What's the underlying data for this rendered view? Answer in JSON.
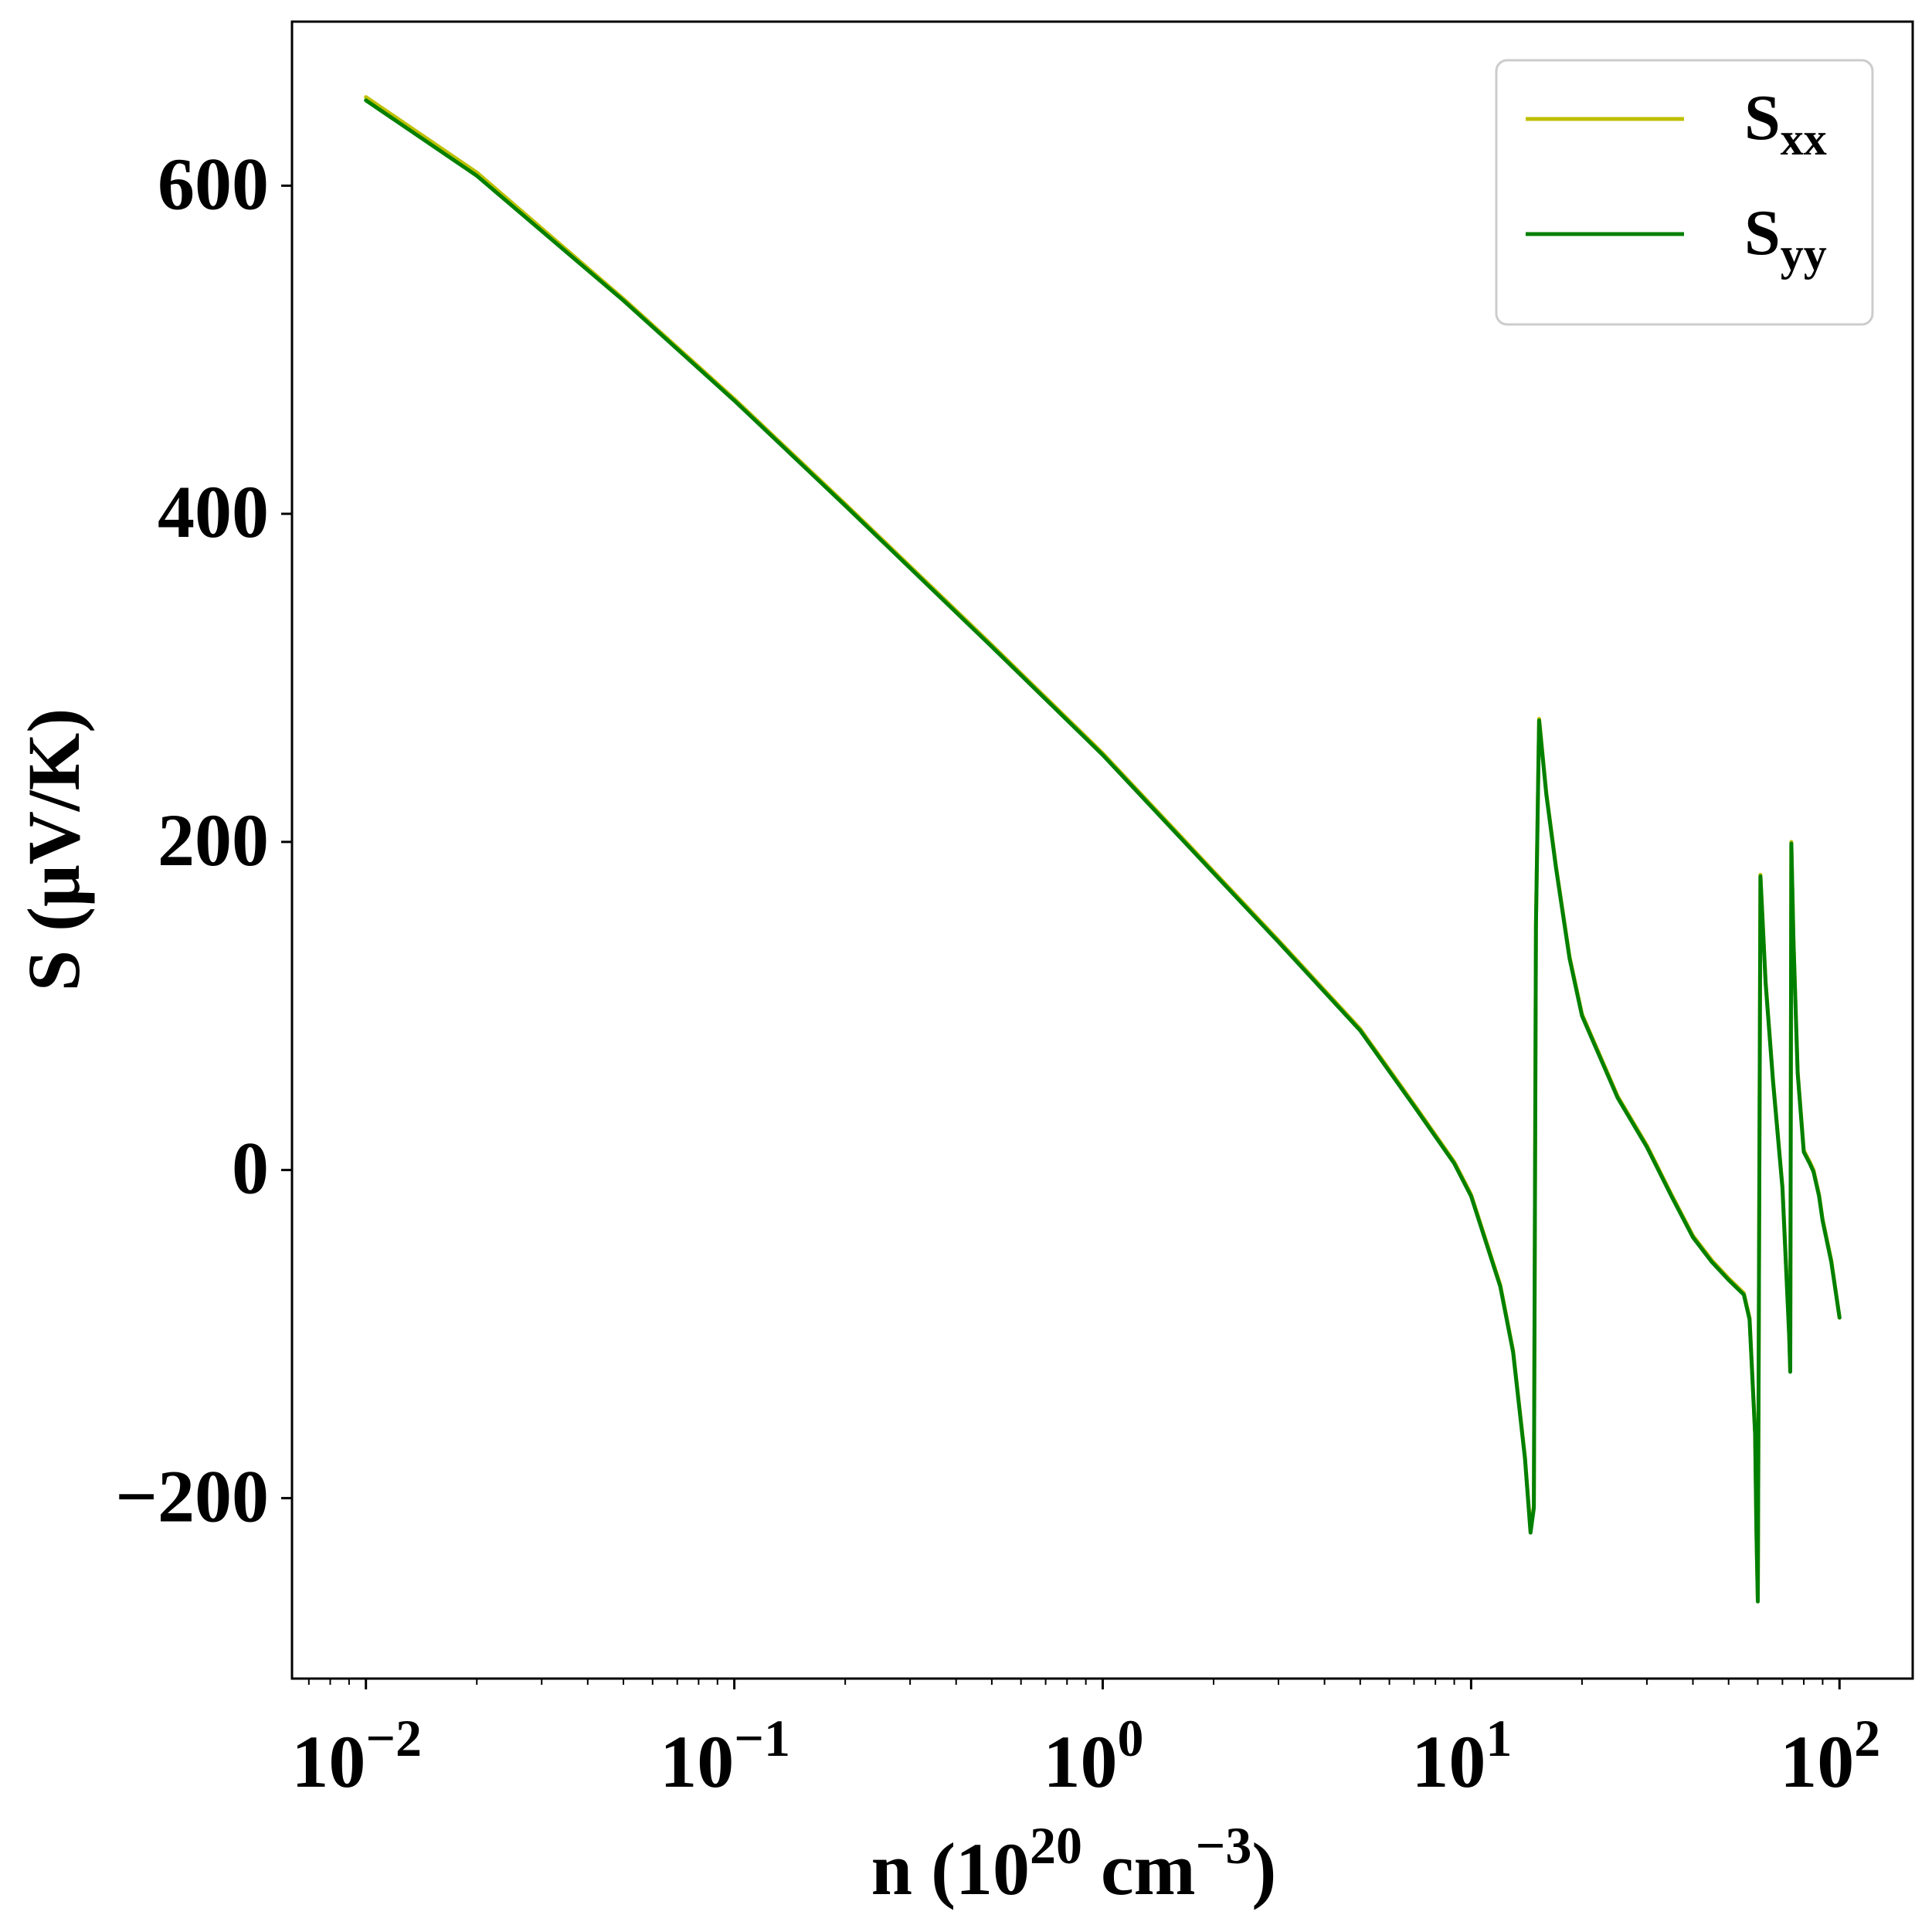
{
  "chart_data": {
    "type": "line",
    "xlabel": {
      "prefix": "n (10",
      "sup1": "20",
      "mid": " cm",
      "sup2": "−3",
      "suffix": ")"
    },
    "ylabel": "S (μV/K)",
    "xscale": "log",
    "xlim": [
      0.0063,
      158
    ],
    "ylim": [
      -310,
      700
    ],
    "yticks": [
      -200,
      0,
      200,
      400,
      600
    ],
    "ytick_labels": [
      "−200",
      "0",
      "200",
      "400",
      "600"
    ],
    "xticks": [
      0.01,
      0.1,
      1,
      10,
      100
    ],
    "xtick_labels": [
      {
        "base": "10",
        "exp": "−2"
      },
      {
        "base": "10",
        "exp": "−1"
      },
      {
        "base": "10",
        "exp": "0"
      },
      {
        "base": "10",
        "exp": "1"
      },
      {
        "base": "10",
        "exp": "2"
      }
    ],
    "legend_position": "top-right",
    "grid": false,
    "series": [
      {
        "name": "S",
        "subscript": "xx",
        "color": "#bfbf00",
        "x": [
          0.01,
          0.02,
          0.05,
          0.1,
          0.2,
          0.5,
          1,
          2,
          3,
          5,
          7,
          9,
          10,
          12,
          13,
          14,
          14.5,
          14.8,
          15,
          15.3,
          16,
          17,
          18.5,
          20,
          25,
          30,
          35,
          40,
          45,
          50,
          55,
          57,
          59,
          59.5,
          60,
          61,
          63,
          66,
          70,
          73,
          73.5,
          74,
          75,
          77,
          80,
          83,
          85,
          88,
          90,
          95,
          100
        ],
        "y": [
          654,
          608,
          531,
          470,
          406,
          320,
          254,
          182,
          140,
          86,
          40,
          5,
          -15,
          -70,
          -110,
          -175,
          -220,
          -205,
          150,
          275,
          230,
          185,
          130,
          95,
          45,
          15,
          -15,
          -40,
          -55,
          -66,
          -75,
          -90,
          -160,
          -220,
          -262,
          180,
          115,
          55,
          -10,
          -100,
          -122,
          200,
          140,
          60,
          12,
          5,
          0,
          -15,
          -30,
          -55,
          -90
        ]
      },
      {
        "name": "S",
        "subscript": "yy",
        "color": "#008000",
        "x": [
          0.01,
          0.02,
          0.05,
          0.1,
          0.2,
          0.5,
          1,
          2,
          3,
          5,
          7,
          9,
          10,
          12,
          13,
          14,
          14.5,
          14.8,
          15,
          15.3,
          16,
          17,
          18.5,
          20,
          25,
          30,
          35,
          40,
          45,
          50,
          55,
          57,
          59,
          59.5,
          60,
          61,
          63,
          66,
          70,
          73,
          73.5,
          74,
          75,
          77,
          80,
          83,
          85,
          88,
          90,
          95,
          100
        ],
        "y": [
          652,
          606,
          530,
          469,
          405,
          319,
          253,
          181,
          139,
          85,
          39,
          4,
          -16,
          -71,
          -111,
          -176,
          -221,
          -206,
          149,
          274,
          229,
          184,
          129,
          94,
          44,
          14,
          -16,
          -41,
          -56,
          -67,
          -76,
          -91,
          -161,
          -221,
          -263,
          179,
          114,
          54,
          -11,
          -101,
          -123,
          199,
          139,
          59,
          11,
          4,
          -1,
          -16,
          -31,
          -56,
          -90
        ]
      }
    ]
  }
}
